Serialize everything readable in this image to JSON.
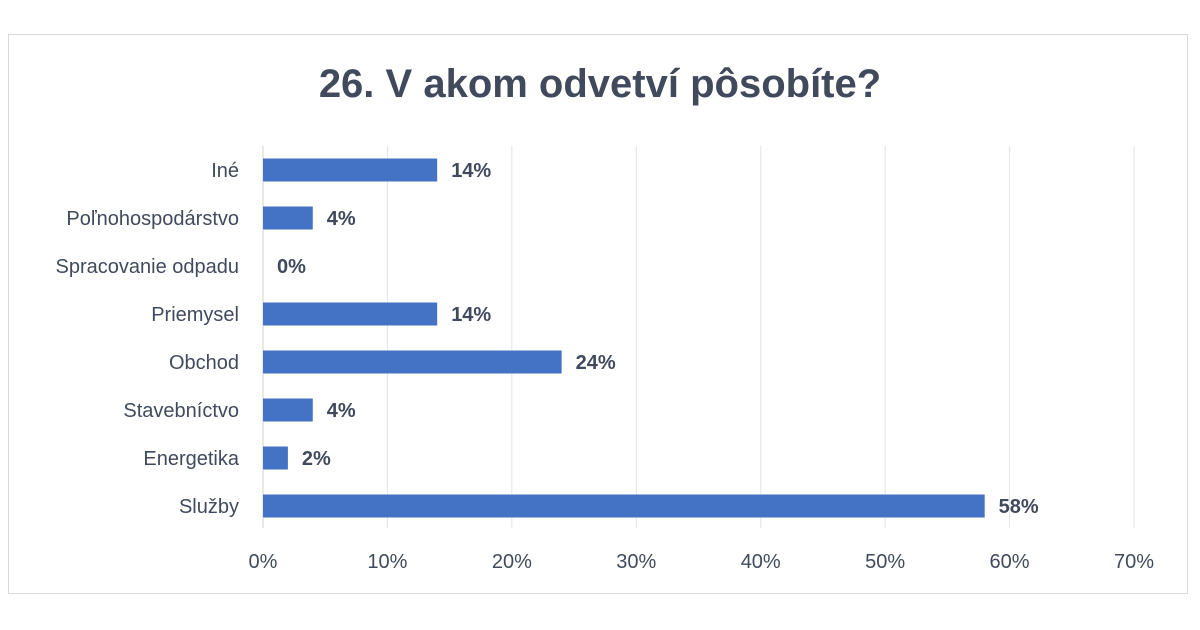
{
  "chart_data": {
    "type": "bar",
    "orientation": "horizontal",
    "title": "26. V akom odvetví pôsobíte?",
    "categories": [
      "Iné",
      "Poľnohospodárstvo",
      "Spracovanie odpadu",
      "Priemysel",
      "Obchod",
      "Stavebníctvo",
      "Energetika",
      "Služby"
    ],
    "values": [
      14,
      4,
      0,
      14,
      24,
      4,
      2,
      58
    ],
    "data_labels": [
      "14%",
      "4%",
      "0%",
      "14%",
      "24%",
      "4%",
      "2%",
      "58%"
    ],
    "xlim": [
      0,
      70
    ],
    "x_ticks": [
      0,
      10,
      20,
      30,
      40,
      50,
      60,
      70
    ],
    "x_tick_labels": [
      "0%",
      "10%",
      "20%",
      "30%",
      "40%",
      "50%",
      "60%",
      "70%"
    ],
    "grid": true,
    "bar_color": "#4472c4"
  }
}
